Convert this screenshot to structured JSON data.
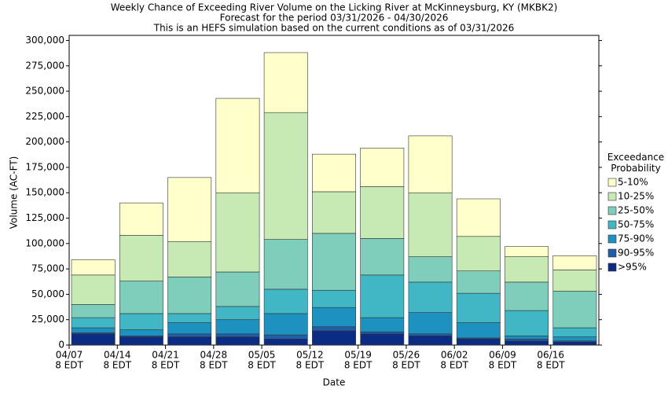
{
  "chart_data": {
    "type": "stacked_bar",
    "title": "Weekly Chance of Exceeding River Volume on the Licking River at McKinneysburg, KY (MKBK2)",
    "subtitle": "Forecast for the period 03/31/2026 - 04/30/2026",
    "note": "This is an HEFS simulation based on the current conditions as of 03/31/2026",
    "x_label": "Date",
    "y_label": "Volume (AC-FT)",
    "legend_title": "Exceedance Probability",
    "categories": [
      "04/07",
      "04/14",
      "04/21",
      "04/28",
      "05/05",
      "05/12",
      "05/19",
      "05/26",
      "06/02",
      "06/09",
      "06/16"
    ],
    "x_tick_sublabel": "8 EDT",
    "series": [
      {
        "name": ">95%",
        "color": "#0c2c84",
        "values": [
          11000,
          8000,
          8000,
          8000,
          6000,
          14000,
          11000,
          9000,
          6000,
          4000,
          3000
        ]
      },
      {
        "name": "90-95%",
        "color": "#225ea8",
        "values": [
          1000,
          1000,
          3000,
          3000,
          4000,
          4000,
          2000,
          2000,
          1000,
          2000,
          1000
        ]
      },
      {
        "name": "75-90%",
        "color": "#1d91c0",
        "values": [
          5000,
          6000,
          11000,
          14000,
          21000,
          19000,
          14000,
          21000,
          15000,
          3000,
          4000
        ]
      },
      {
        "name": "50-75%",
        "color": "#41b6c4",
        "values": [
          10000,
          16000,
          9000,
          13000,
          24000,
          17000,
          42000,
          30000,
          29000,
          25000,
          9000
        ]
      },
      {
        "name": "25-50%",
        "color": "#7fcdbb",
        "values": [
          13000,
          32000,
          36000,
          34000,
          49000,
          56000,
          36000,
          25000,
          22000,
          28000,
          36000
        ]
      },
      {
        "name": "10-25%",
        "color": "#c7e9b4",
        "values": [
          29000,
          45000,
          35000,
          78000,
          125000,
          41000,
          51000,
          63000,
          34000,
          25000,
          21000
        ]
      },
      {
        "name": "5-10%",
        "color": "#ffffcc",
        "values": [
          15000,
          32000,
          63000,
          93000,
          59000,
          37000,
          38000,
          56000,
          37000,
          10000,
          14000
        ]
      }
    ],
    "ylim": [
      0,
      305000
    ],
    "yticks": [
      0,
      {
        "value": 25000,
        "label": "25,000"
      },
      {
        "value": 50000,
        "label": "50,000"
      },
      {
        "value": 75000,
        "label": "75,000"
      },
      {
        "value": 100000,
        "label": "100,000"
      },
      {
        "value": 125000,
        "label": "125,000"
      },
      {
        "value": 150000,
        "label": "150,000"
      },
      {
        "value": 175000,
        "label": "175,000"
      },
      {
        "value": 200000,
        "label": "200,000"
      },
      {
        "value": 225000,
        "label": "225,000"
      },
      {
        "value": 250000,
        "label": "250,000"
      },
      {
        "value": 275000,
        "label": "275,000"
      },
      {
        "value": 300000,
        "label": "300,000"
      }
    ],
    "grid": false
  }
}
